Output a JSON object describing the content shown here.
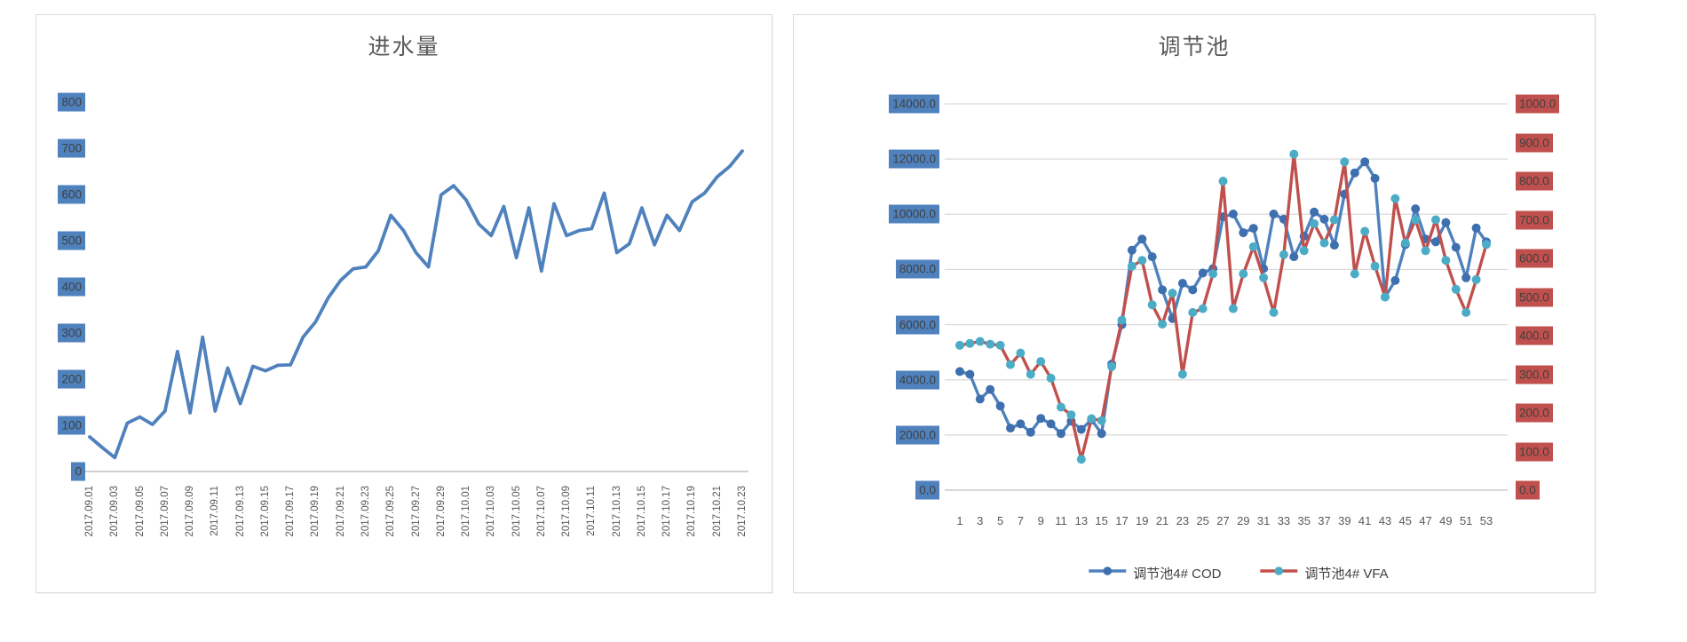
{
  "chart_data": [
    {
      "type": "line",
      "title": "进水量",
      "x_tick_labels": [
        "2017.09.01",
        "2017.09.03",
        "2017.09.05",
        "2017.09.07",
        "2017.09.09",
        "2017.09.11",
        "2017.09.13",
        "2017.09.15",
        "2017.09.17",
        "2017.09.19",
        "2017.09.21",
        "2017.09.23",
        "2017.09.25",
        "2017.09.27",
        "2017.09.29",
        "2017.10.01",
        "2017.10.03",
        "2017.10.05",
        "2017.10.07",
        "2017.10.09",
        "2017.10.11",
        "2017.10.13",
        "2017.10.15",
        "2017.10.17",
        "2017.10.19",
        "2017.10.21",
        "2017.10.23"
      ],
      "y_tick_labels": [
        "800",
        "700",
        "600",
        "500",
        "400",
        "300",
        "200",
        "100",
        "0"
      ],
      "ylim": [
        0,
        800
      ],
      "grid": false,
      "legend": "none",
      "line_color": "#4f81bd",
      "y_label_fill": "#4f81bd",
      "values": [
        75,
        52,
        30,
        105,
        118,
        102,
        131,
        260,
        127,
        291,
        131,
        224,
        147,
        228,
        218,
        230,
        231,
        291,
        324,
        376,
        414,
        439,
        443,
        478,
        555,
        522,
        474,
        443,
        599,
        619,
        588,
        536,
        511,
        574,
        463,
        571,
        434,
        580,
        511,
        522,
        526,
        603,
        474,
        493,
        571,
        491,
        555,
        522,
        584,
        603,
        638,
        661,
        694
      ]
    },
    {
      "type": "line",
      "title": "调节池",
      "x_tick_labels": [
        "1",
        "3",
        "5",
        "7",
        "9",
        "11",
        "13",
        "15",
        "17",
        "19",
        "21",
        "23",
        "25",
        "27",
        "29",
        "31",
        "33",
        "35",
        "37",
        "39",
        "41",
        "43",
        "45",
        "47",
        "49",
        "51",
        "53"
      ],
      "grid": true,
      "legend_position": "bottom",
      "left_axis": {
        "tick_labels": [
          "14000.0",
          "12000.0",
          "10000.0",
          "8000.0",
          "6000.0",
          "4000.0",
          "2000.0",
          "0.0"
        ],
        "min": 0,
        "max": 14000,
        "label_fill": "#4f81bd"
      },
      "right_axis": {
        "tick_labels": [
          "1000.0",
          "900.0",
          "800.0",
          "700.0",
          "600.0",
          "500.0",
          "400.0",
          "300.0",
          "200.0",
          "100.0",
          "0.0"
        ],
        "min": 0,
        "max": 1000,
        "label_fill": "#c0504d"
      },
      "series": [
        {
          "name": "调节池4# COD",
          "axis": "left",
          "color": "#4f81bd",
          "marker_color": "#3e6fae",
          "values": [
            4300,
            4200,
            3300,
            3650,
            3050,
            2250,
            2400,
            2100,
            2600,
            2400,
            2050,
            2500,
            2200,
            2550,
            2050,
            4570,
            6000,
            8700,
            9100,
            8460,
            7260,
            6220,
            7500,
            7260,
            7870,
            8030,
            9910,
            10010,
            9330,
            9490,
            8030,
            10010,
            9820,
            8460,
            9200,
            10080,
            9820,
            8880,
            10730,
            11500,
            11900,
            11300,
            7000,
            7600,
            8900,
            10200,
            9100,
            9000,
            9700,
            8800,
            7700,
            9500,
            9000
          ]
        },
        {
          "name": "调节池4# VFA",
          "axis": "right",
          "color": "#c0504d",
          "marker_color": "#4bacc6",
          "values": [
            375,
            380,
            385,
            378,
            375,
            325,
            355,
            300,
            333,
            290,
            215,
            195,
            80,
            185,
            180,
            320,
            440,
            580,
            595,
            480,
            430,
            510,
            300,
            460,
            470,
            560,
            800,
            470,
            560,
            630,
            550,
            460,
            610,
            870,
            620,
            690,
            640,
            700,
            850,
            560,
            670,
            580,
            500,
            755,
            640,
            700,
            620,
            700,
            595,
            520,
            460,
            545,
            636
          ]
        }
      ]
    }
  ],
  "style": {
    "grid_color": "#d9d9d9",
    "axis_line_color": "#bfbfbf",
    "title_color": "#595959",
    "tick_text_color": "#595959"
  }
}
